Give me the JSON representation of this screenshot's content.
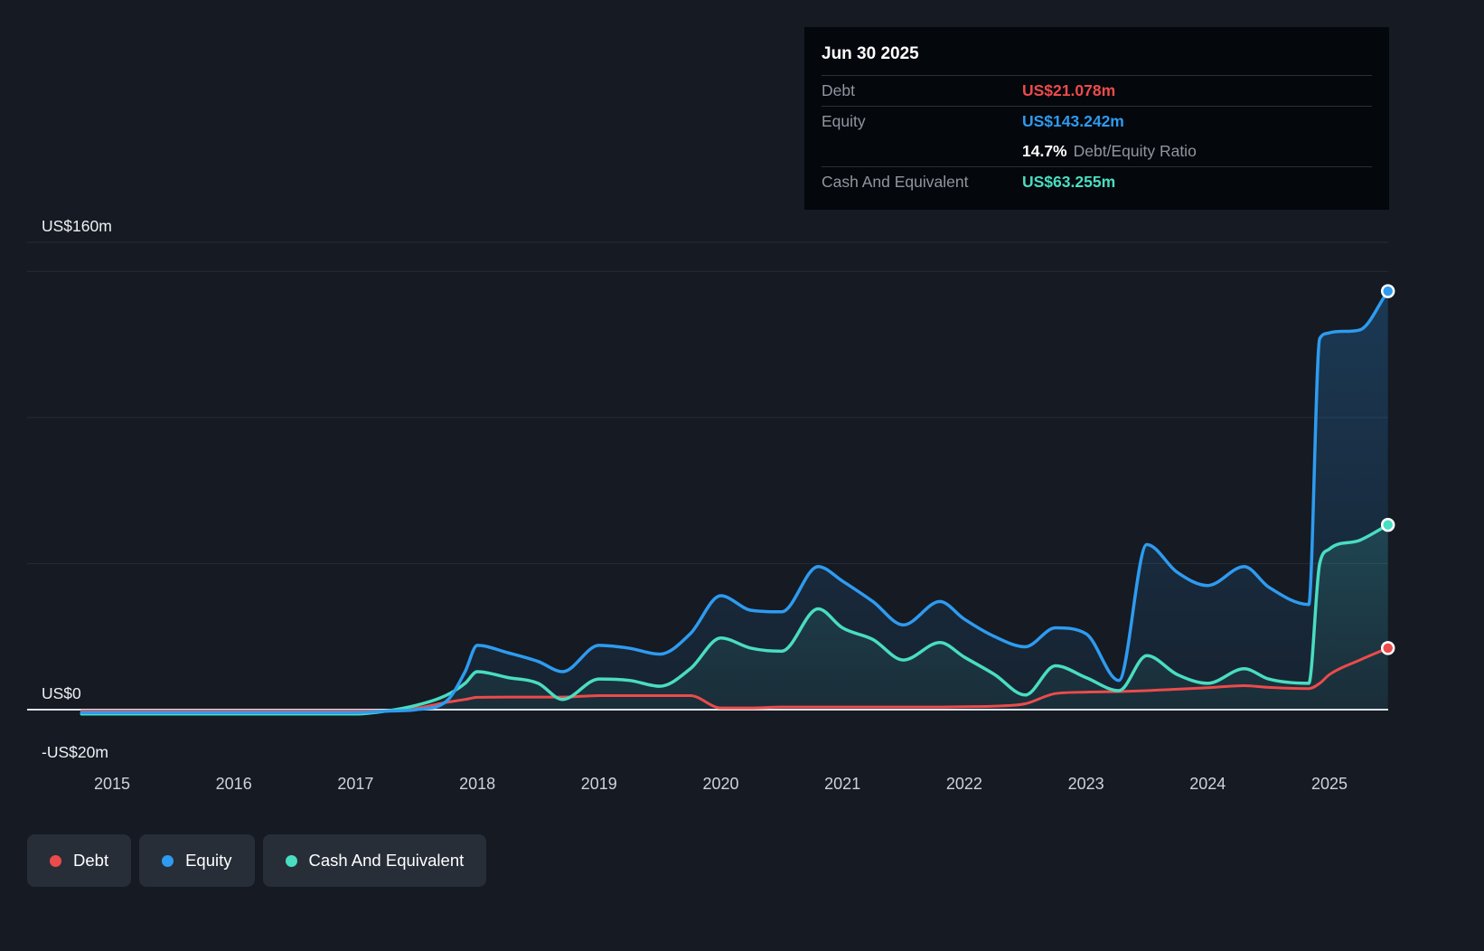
{
  "tooltip": {
    "date": "Jun 30 2025",
    "debt_label": "Debt",
    "debt_value": "US$21.078m",
    "equity_label": "Equity",
    "equity_value": "US$143.242m",
    "ratio_value": "14.7%",
    "ratio_label": "Debt/Equity Ratio",
    "cash_label": "Cash And Equivalent",
    "cash_value": "US$63.255m"
  },
  "axis": {
    "y_labels": [
      {
        "text": "US$160m",
        "value": 160
      },
      {
        "text": "US$0",
        "value": 0
      },
      {
        "text": "-US$20m",
        "value": -20
      }
    ],
    "gridline_values": [
      160,
      150,
      100,
      50
    ],
    "x_ticks": [
      2015,
      2016,
      2017,
      2018,
      2019,
      2020,
      2021,
      2022,
      2023,
      2024,
      2025
    ]
  },
  "legend": {
    "items": [
      {
        "label": "Debt",
        "color": "#ec4b4b"
      },
      {
        "label": "Equity",
        "color": "#2e9bf0"
      },
      {
        "label": "Cash And Equivalent",
        "color": "#49ddc1"
      }
    ]
  },
  "colors": {
    "background": "#151a23",
    "tooltip_background": "#04070c",
    "gridline": "#262d38",
    "zero_line": "#dde2e8",
    "debt": "#ec4b4b",
    "equity": "#2e9bf0",
    "cash": "#49ddc1"
  },
  "chart_data": {
    "type": "area",
    "unit": "US$ millions",
    "xlim": [
      2014.75,
      2025.48
    ],
    "ylim": [
      -20,
      160
    ],
    "grid": "horizontal",
    "legend_position": "bottom-left",
    "x_years": [
      2014.75,
      2015,
      2015.25,
      2015.5,
      2015.75,
      2016,
      2016.25,
      2016.5,
      2016.75,
      2017,
      2017.25,
      2017.5,
      2017.75,
      2017.9,
      2018,
      2018.25,
      2018.5,
      2018.7,
      2019,
      2019.25,
      2019.5,
      2019.75,
      2020,
      2020.25,
      2020.5,
      2020.8,
      2021,
      2021.25,
      2021.5,
      2021.8,
      2022,
      2022.25,
      2022.5,
      2022.75,
      2023,
      2023.27,
      2023.5,
      2023.75,
      2024,
      2024.3,
      2024.5,
      2024.83,
      2024.92,
      2025,
      2025.25,
      2025.48
    ],
    "series": [
      {
        "name": "Debt",
        "color": "#ec4b4b",
        "fill": false,
        "end_value": 21.078,
        "values": [
          -0.5,
          -0.5,
          -0.5,
          -0.5,
          -0.5,
          -0.5,
          -0.5,
          -0.5,
          -0.5,
          -0.5,
          -0.5,
          0.5,
          2.5,
          3.5,
          4.2,
          4.3,
          4.3,
          4.3,
          4.8,
          4.8,
          4.8,
          4.8,
          0.6,
          0.6,
          0.9,
          0.9,
          0.9,
          0.9,
          0.9,
          0.9,
          1.0,
          1.2,
          2.0,
          5.5,
          6.0,
          6.2,
          6.5,
          7.0,
          7.5,
          8.2,
          7.6,
          7.2,
          9.0,
          12.0,
          17.0,
          21.078
        ]
      },
      {
        "name": "Equity",
        "color": "#2e9bf0",
        "fill": true,
        "end_value": 143.242,
        "values": [
          -1,
          -1,
          -1,
          -1,
          -1,
          -1,
          -1,
          -1,
          -1,
          -1,
          -0.5,
          0,
          3,
          13,
          22,
          19.5,
          16.5,
          13,
          22,
          21,
          19,
          26,
          39,
          34,
          33.5,
          49,
          44,
          37,
          29,
          37,
          31,
          25,
          21.5,
          28,
          26,
          10,
          56.5,
          47,
          42.5,
          49,
          42,
          36,
          127,
          129,
          130,
          143.242
        ]
      },
      {
        "name": "Cash And Equivalent",
        "color": "#49ddc1",
        "fill": true,
        "end_value": 63.255,
        "values": [
          -1.5,
          -1.5,
          -1.5,
          -1.5,
          -1.5,
          -1.5,
          -1.5,
          -1.5,
          -1.5,
          -1.5,
          -0.5,
          1.5,
          5,
          9,
          13,
          11,
          9,
          3.5,
          10.5,
          10,
          8,
          14,
          24.5,
          21,
          20,
          34.5,
          28,
          24,
          17,
          23,
          18,
          12,
          5,
          15,
          11,
          6.5,
          18.5,
          12,
          9,
          14,
          10.5,
          9,
          50,
          55,
          58,
          63.255
        ]
      }
    ]
  }
}
